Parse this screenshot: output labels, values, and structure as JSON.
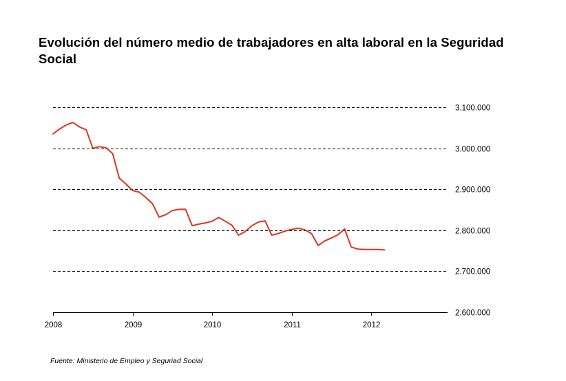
{
  "title": "Evolución del número medio de trabajadores en alta laboral en la Seguridad Social",
  "source": "Fuente: Ministerio de Empleo y Seguriad Social",
  "chart_data": {
    "type": "line",
    "title": "Evolución del número medio de trabajadores en alta laboral en la Seguridad Social",
    "xlabel": "",
    "ylabel": "",
    "xlim": [
      2008,
      2012.9
    ],
    "ylim": [
      2600000,
      3100000
    ],
    "x_ticks": [
      2008,
      2009,
      2010,
      2011,
      2012
    ],
    "x_tick_labels": [
      "2008",
      "2009",
      "2010",
      "2011",
      "2012"
    ],
    "y_ticks": [
      3100000,
      3000000,
      2900000,
      2800000,
      2700000,
      2600000
    ],
    "y_tick_labels": [
      "3.100.000",
      "3.000.000",
      "2.900.000",
      "2.800.000",
      "2.700.000",
      "2.600.000"
    ],
    "grid": "horizontal dashed",
    "axis_side": "right",
    "series_color": "#dd3322",
    "series": [
      {
        "x": [
          2008.0,
          2008.083,
          2008.167,
          2008.25,
          2008.333,
          2008.417,
          2008.5,
          2008.583,
          2008.667,
          2008.75,
          2008.833,
          2008.917,
          2009.0,
          2009.083,
          2009.167,
          2009.25,
          2009.333,
          2009.417,
          2009.5,
          2009.583,
          2009.667,
          2009.75,
          2009.833,
          2009.917,
          2010.0,
          2010.083,
          2010.167,
          2010.25,
          2010.333,
          2010.417,
          2010.5,
          2010.583,
          2010.667,
          2010.75,
          2010.833,
          2010.917,
          2011.0,
          2011.083,
          2011.167,
          2011.25,
          2011.333,
          2011.417,
          2011.5,
          2011.583,
          2011.667,
          2011.75,
          2011.833,
          2011.917,
          2012.0,
          2012.083,
          2012.167
        ],
        "values": [
          3035000,
          3047000,
          3057000,
          3063000,
          3052000,
          3045000,
          3000000,
          3004000,
          3001000,
          2987000,
          2927000,
          2913000,
          2897000,
          2893000,
          2880000,
          2865000,
          2832000,
          2838000,
          2848000,
          2851000,
          2851000,
          2811000,
          2815000,
          2818000,
          2822000,
          2831000,
          2822000,
          2812000,
          2788000,
          2797000,
          2811000,
          2820000,
          2823000,
          2788000,
          2792000,
          2798000,
          2802000,
          2805000,
          2801000,
          2792000,
          2763000,
          2774000,
          2781000,
          2789000,
          2803000,
          2759000,
          2754000,
          2753000,
          2753000,
          2753000,
          2752000
        ]
      }
    ]
  }
}
